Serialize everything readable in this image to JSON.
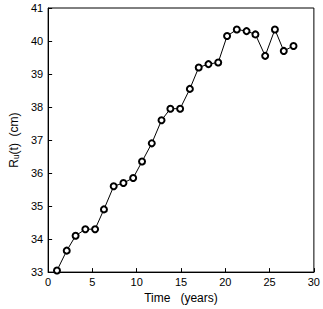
{
  "chart_data": {
    "type": "line",
    "x_label": "Time   (years)",
    "y_label": "Rᵤ(t)  (cm)",
    "x": [
      1.0,
      2.1,
      3.1,
      4.2,
      5.3,
      6.3,
      7.4,
      8.5,
      9.6,
      10.6,
      11.7,
      12.8,
      13.8,
      14.9,
      16.0,
      17.0,
      18.1,
      19.2,
      20.2,
      21.3,
      22.4,
      23.4,
      24.5,
      25.6,
      26.6,
      27.7
    ],
    "values": [
      33.05,
      33.65,
      34.1,
      34.3,
      34.3,
      34.9,
      35.6,
      35.7,
      35.85,
      36.35,
      36.9,
      37.6,
      37.95,
      37.95,
      38.55,
      39.2,
      39.3,
      39.35,
      40.15,
      40.35,
      40.3,
      40.2,
      39.55,
      40.35,
      39.7,
      39.85
    ],
    "color": "#000000",
    "marker": "circle",
    "line_style": "solid",
    "xlim": [
      0,
      30
    ],
    "xticks": [
      0,
      5,
      10,
      15,
      20,
      25,
      30
    ],
    "ylim": [
      33,
      41
    ],
    "yticks": [
      33,
      34,
      35,
      36,
      37,
      38,
      39,
      40,
      41
    ],
    "grid": false
  }
}
